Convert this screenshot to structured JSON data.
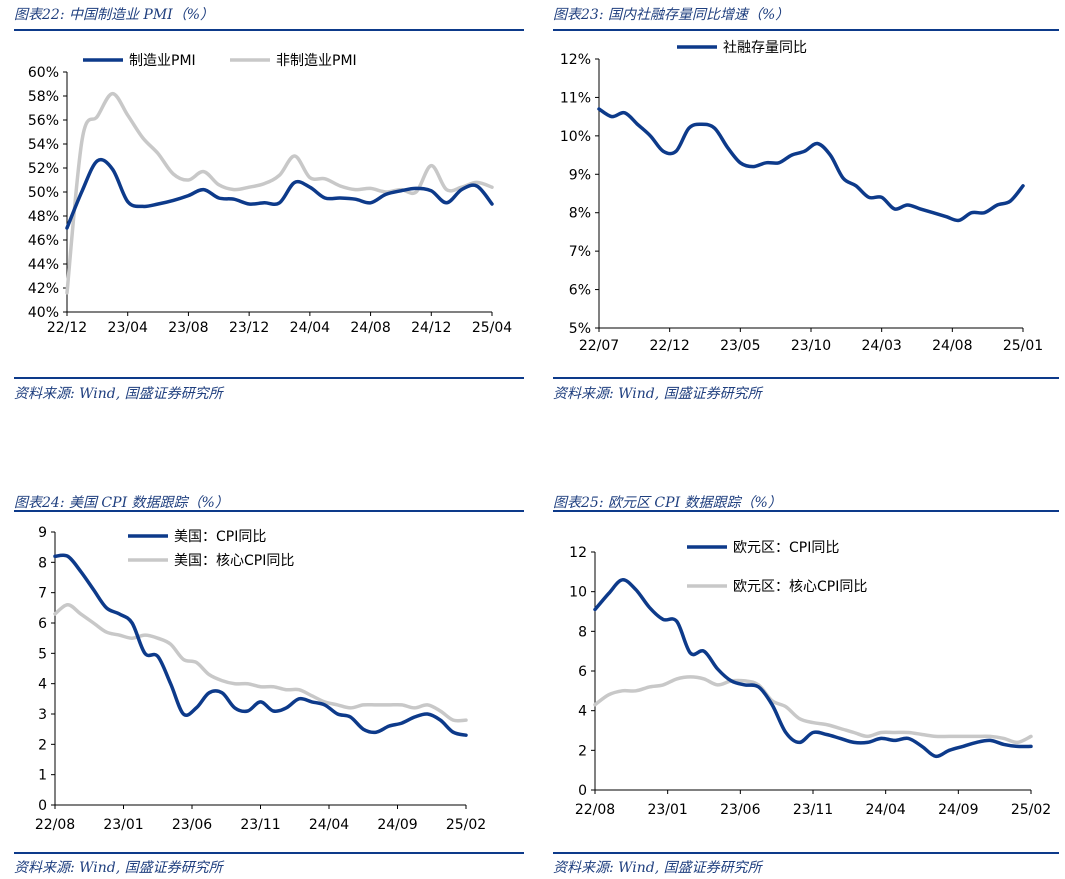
{
  "colors": {
    "blue": "#0d3a8a",
    "grey": "#c8c8c8",
    "title": "#1f3f7f"
  },
  "panels": [
    {
      "title": "图表22:  中国制造业 PMI（%）",
      "source": "资料来源:  Wind, 国盛证券研究所"
    },
    {
      "title": "图表23:  国内社融存量同比增速（%）",
      "source": "资料来源:  Wind, 国盛证券研究所"
    },
    {
      "title": "图表24:  美国 CPI 数据跟踪（%）",
      "source": "资料来源:  Wind, 国盛证券研究所"
    },
    {
      "title": "图表25:  欧元区 CPI 数据跟踪（%）",
      "source": "资料来源:  Wind, 国盛证券研究所"
    }
  ],
  "chart_data": [
    {
      "type": "line",
      "legend_placement": "top",
      "ylim": [
        40,
        60
      ],
      "y_ticks": [
        "40%",
        "42%",
        "44%",
        "46%",
        "48%",
        "50%",
        "52%",
        "54%",
        "56%",
        "58%",
        "60%"
      ],
      "x_ticks": [
        "22/12",
        "23/04",
        "23/08",
        "23/12",
        "24/04",
        "24/08",
        "24/12",
        "25/04"
      ],
      "series": [
        {
          "name": "制造业PMI",
          "color": "#0d3a8a",
          "values": [
            47.0,
            50.1,
            52.6,
            51.9,
            49.2,
            48.8,
            49.0,
            49.3,
            49.7,
            50.2,
            49.5,
            49.4,
            49.0,
            49.1,
            49.1,
            50.8,
            50.4,
            49.5,
            49.5,
            49.4,
            49.1,
            49.8,
            50.1,
            50.3,
            50.1,
            49.1,
            50.2,
            50.5,
            49.0
          ]
        },
        {
          "name": "非制造业PMI",
          "color": "#c8c8c8",
          "values": [
            41.6,
            54.4,
            56.3,
            58.2,
            56.4,
            54.5,
            53.2,
            51.5,
            51.0,
            51.7,
            50.6,
            50.2,
            50.4,
            50.7,
            51.4,
            53.0,
            51.2,
            51.1,
            50.5,
            50.2,
            50.3,
            50.0,
            50.2,
            50.0,
            52.2,
            50.2,
            50.4,
            50.8,
            50.4
          ]
        }
      ]
    },
    {
      "type": "line",
      "legend_placement": "top",
      "ylim": [
        5,
        12
      ],
      "y_ticks": [
        "5%",
        "6%",
        "7%",
        "8%",
        "9%",
        "10%",
        "11%",
        "12%"
      ],
      "x_ticks": [
        "22/07",
        "22/12",
        "23/05",
        "23/10",
        "24/03",
        "24/08",
        "25/01"
      ],
      "series": [
        {
          "name": "社融存量同比",
          "color": "#0d3a8a",
          "values": [
            10.7,
            10.5,
            10.6,
            10.3,
            10.0,
            9.6,
            9.6,
            10.2,
            10.3,
            10.2,
            9.7,
            9.3,
            9.2,
            9.3,
            9.3,
            9.5,
            9.6,
            9.8,
            9.5,
            8.9,
            8.7,
            8.4,
            8.4,
            8.1,
            8.2,
            8.1,
            8.0,
            7.9,
            7.8,
            8.0,
            8.0,
            8.2,
            8.3,
            8.7
          ]
        }
      ]
    },
    {
      "type": "line",
      "legend_placement": "top",
      "ylim": [
        0,
        9
      ],
      "y_ticks": [
        "0",
        "1",
        "2",
        "3",
        "4",
        "5",
        "6",
        "7",
        "8",
        "9"
      ],
      "x_ticks": [
        "22/08",
        "23/01",
        "23/06",
        "23/11",
        "24/04",
        "24/09",
        "25/02"
      ],
      "series": [
        {
          "name": "美国：CPI同比",
          "color": "#0d3a8a",
          "values": [
            8.2,
            8.2,
            7.7,
            7.1,
            6.5,
            6.3,
            6.0,
            5.0,
            4.9,
            4.0,
            3.0,
            3.2,
            3.7,
            3.7,
            3.2,
            3.1,
            3.4,
            3.1,
            3.2,
            3.5,
            3.4,
            3.3,
            3.0,
            2.9,
            2.5,
            2.4,
            2.6,
            2.7,
            2.9,
            3.0,
            2.8,
            2.4,
            2.3
          ]
        },
        {
          "name": "美国：核心CPI同比",
          "color": "#c8c8c8",
          "values": [
            6.3,
            6.6,
            6.3,
            6.0,
            5.7,
            5.6,
            5.5,
            5.6,
            5.5,
            5.3,
            4.8,
            4.7,
            4.3,
            4.1,
            4.0,
            4.0,
            3.9,
            3.9,
            3.8,
            3.8,
            3.6,
            3.4,
            3.3,
            3.2,
            3.3,
            3.3,
            3.3,
            3.3,
            3.2,
            3.3,
            3.1,
            2.8,
            2.8
          ]
        }
      ]
    },
    {
      "type": "line",
      "legend_placement": "top",
      "ylim": [
        0,
        12
      ],
      "y_ticks": [
        "0",
        "2",
        "4",
        "6",
        "8",
        "10",
        "12"
      ],
      "x_ticks": [
        "22/08",
        "23/01",
        "23/06",
        "23/11",
        "24/04",
        "24/09",
        "25/02"
      ],
      "series": [
        {
          "name": "欧元区：CPI同比",
          "color": "#0d3a8a",
          "values": [
            9.1,
            9.9,
            10.6,
            10.1,
            9.2,
            8.6,
            8.5,
            6.9,
            7.0,
            6.1,
            5.5,
            5.3,
            5.2,
            4.3,
            2.9,
            2.4,
            2.9,
            2.8,
            2.6,
            2.4,
            2.4,
            2.6,
            2.5,
            2.6,
            2.2,
            1.7,
            2.0,
            2.2,
            2.4,
            2.5,
            2.3,
            2.2,
            2.2
          ]
        },
        {
          "name": "欧元区：核心CPI同比",
          "color": "#c8c8c8",
          "values": [
            4.3,
            4.8,
            5.0,
            5.0,
            5.2,
            5.3,
            5.6,
            5.7,
            5.6,
            5.3,
            5.5,
            5.5,
            5.3,
            4.5,
            4.2,
            3.6,
            3.4,
            3.3,
            3.1,
            2.9,
            2.7,
            2.9,
            2.9,
            2.9,
            2.8,
            2.7,
            2.7,
            2.7,
            2.7,
            2.7,
            2.6,
            2.4,
            2.7
          ]
        }
      ]
    }
  ]
}
